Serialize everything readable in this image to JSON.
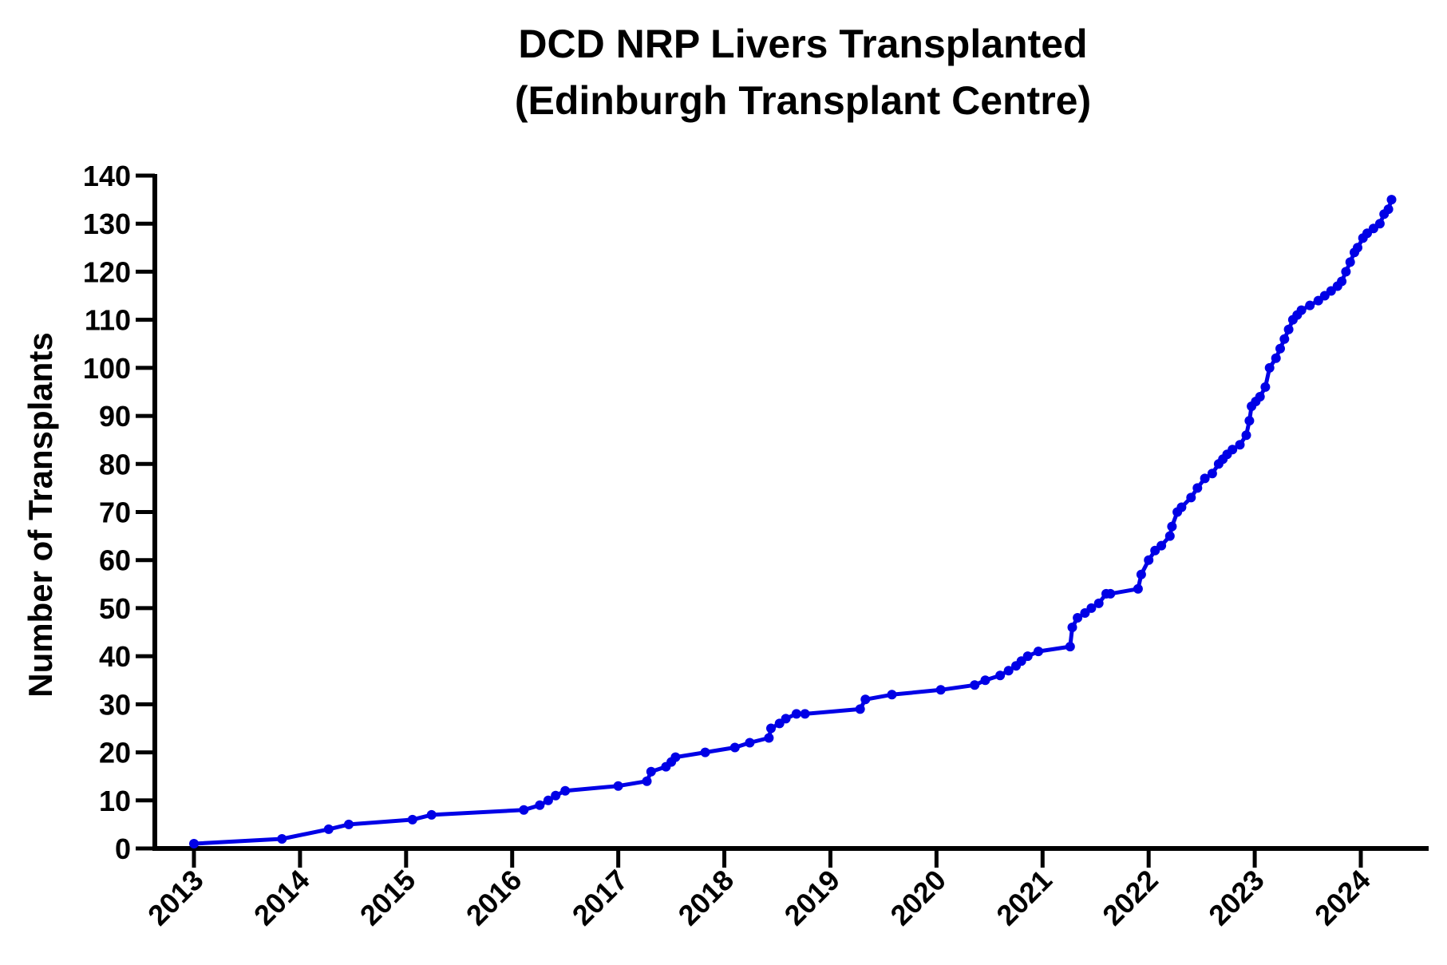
{
  "chart_data": {
    "type": "line",
    "title": "DCD NRP Livers Transplanted",
    "subtitle": "(Edinburgh Transplant Centre)",
    "xlabel": "",
    "ylabel": "Number of Transplants",
    "xlim": [
      2013,
      2024.3
    ],
    "ylim": [
      0,
      140
    ],
    "x_ticks": [
      "2013",
      "2014",
      "2015",
      "2016",
      "2017",
      "2018",
      "2019",
      "2020",
      "2021",
      "2022",
      "2023",
      "2024"
    ],
    "y_ticks": [
      "0",
      "10",
      "20",
      "30",
      "40",
      "50",
      "60",
      "70",
      "80",
      "90",
      "100",
      "110",
      "120",
      "130",
      "140"
    ],
    "grid": false,
    "legend": "none",
    "series": [
      {
        "color": "#0000e6",
        "x": [
          2013.0,
          2013.83,
          2014.27,
          2014.46,
          2015.06,
          2015.24,
          2016.11,
          2016.26,
          2016.34,
          2016.41,
          2016.5,
          2017.0,
          2017.27,
          2017.31,
          2017.45,
          2017.5,
          2017.54,
          2017.82,
          2018.1,
          2018.24,
          2018.42,
          2018.44,
          2018.52,
          2018.58,
          2018.68,
          2018.76,
          2019.28,
          2019.33,
          2019.58,
          2020.04,
          2020.36,
          2020.46,
          2020.6,
          2020.68,
          2020.75,
          2020.8,
          2020.86,
          2020.96,
          2021.26,
          2021.28,
          2021.33,
          2021.4,
          2021.46,
          2021.53,
          2021.6,
          2021.64,
          2021.9,
          2021.93,
          2022.0,
          2022.06,
          2022.12,
          2022.2,
          2022.22,
          2022.27,
          2022.31,
          2022.4,
          2022.46,
          2022.53,
          2022.6,
          2022.66,
          2022.7,
          2022.74,
          2022.79,
          2022.86,
          2022.92,
          2022.95,
          2022.97,
          2023.01,
          2023.05,
          2023.1,
          2023.14,
          2023.2,
          2023.24,
          2023.28,
          2023.32,
          2023.36,
          2023.4,
          2023.44,
          2023.52,
          2023.6,
          2023.66,
          2023.72,
          2023.78,
          2023.82,
          2023.86,
          2023.9,
          2023.94,
          2023.97,
          2024.02,
          2024.06,
          2024.12,
          2024.18,
          2024.22,
          2024.26,
          2024.29
        ],
        "y": [
          1,
          2,
          4,
          5,
          6,
          7,
          8,
          9,
          10,
          11,
          12,
          13,
          14,
          16,
          17,
          18,
          19,
          20,
          21,
          22,
          23,
          25,
          26,
          27,
          28,
          28,
          29,
          31,
          32,
          33,
          34,
          35,
          36,
          37,
          38,
          39,
          40,
          41,
          42,
          46,
          48,
          49,
          50,
          51,
          53,
          53,
          54,
          57,
          60,
          62,
          63,
          65,
          67,
          70,
          71,
          73,
          75,
          77,
          78,
          80,
          81,
          82,
          83,
          84,
          86,
          89,
          92,
          93,
          94,
          96,
          100,
          102,
          104,
          106,
          108,
          110,
          111,
          112,
          113,
          114,
          115,
          116,
          117,
          118,
          120,
          122,
          124,
          125,
          127,
          128,
          129,
          130,
          132,
          133,
          135
        ]
      }
    ]
  }
}
